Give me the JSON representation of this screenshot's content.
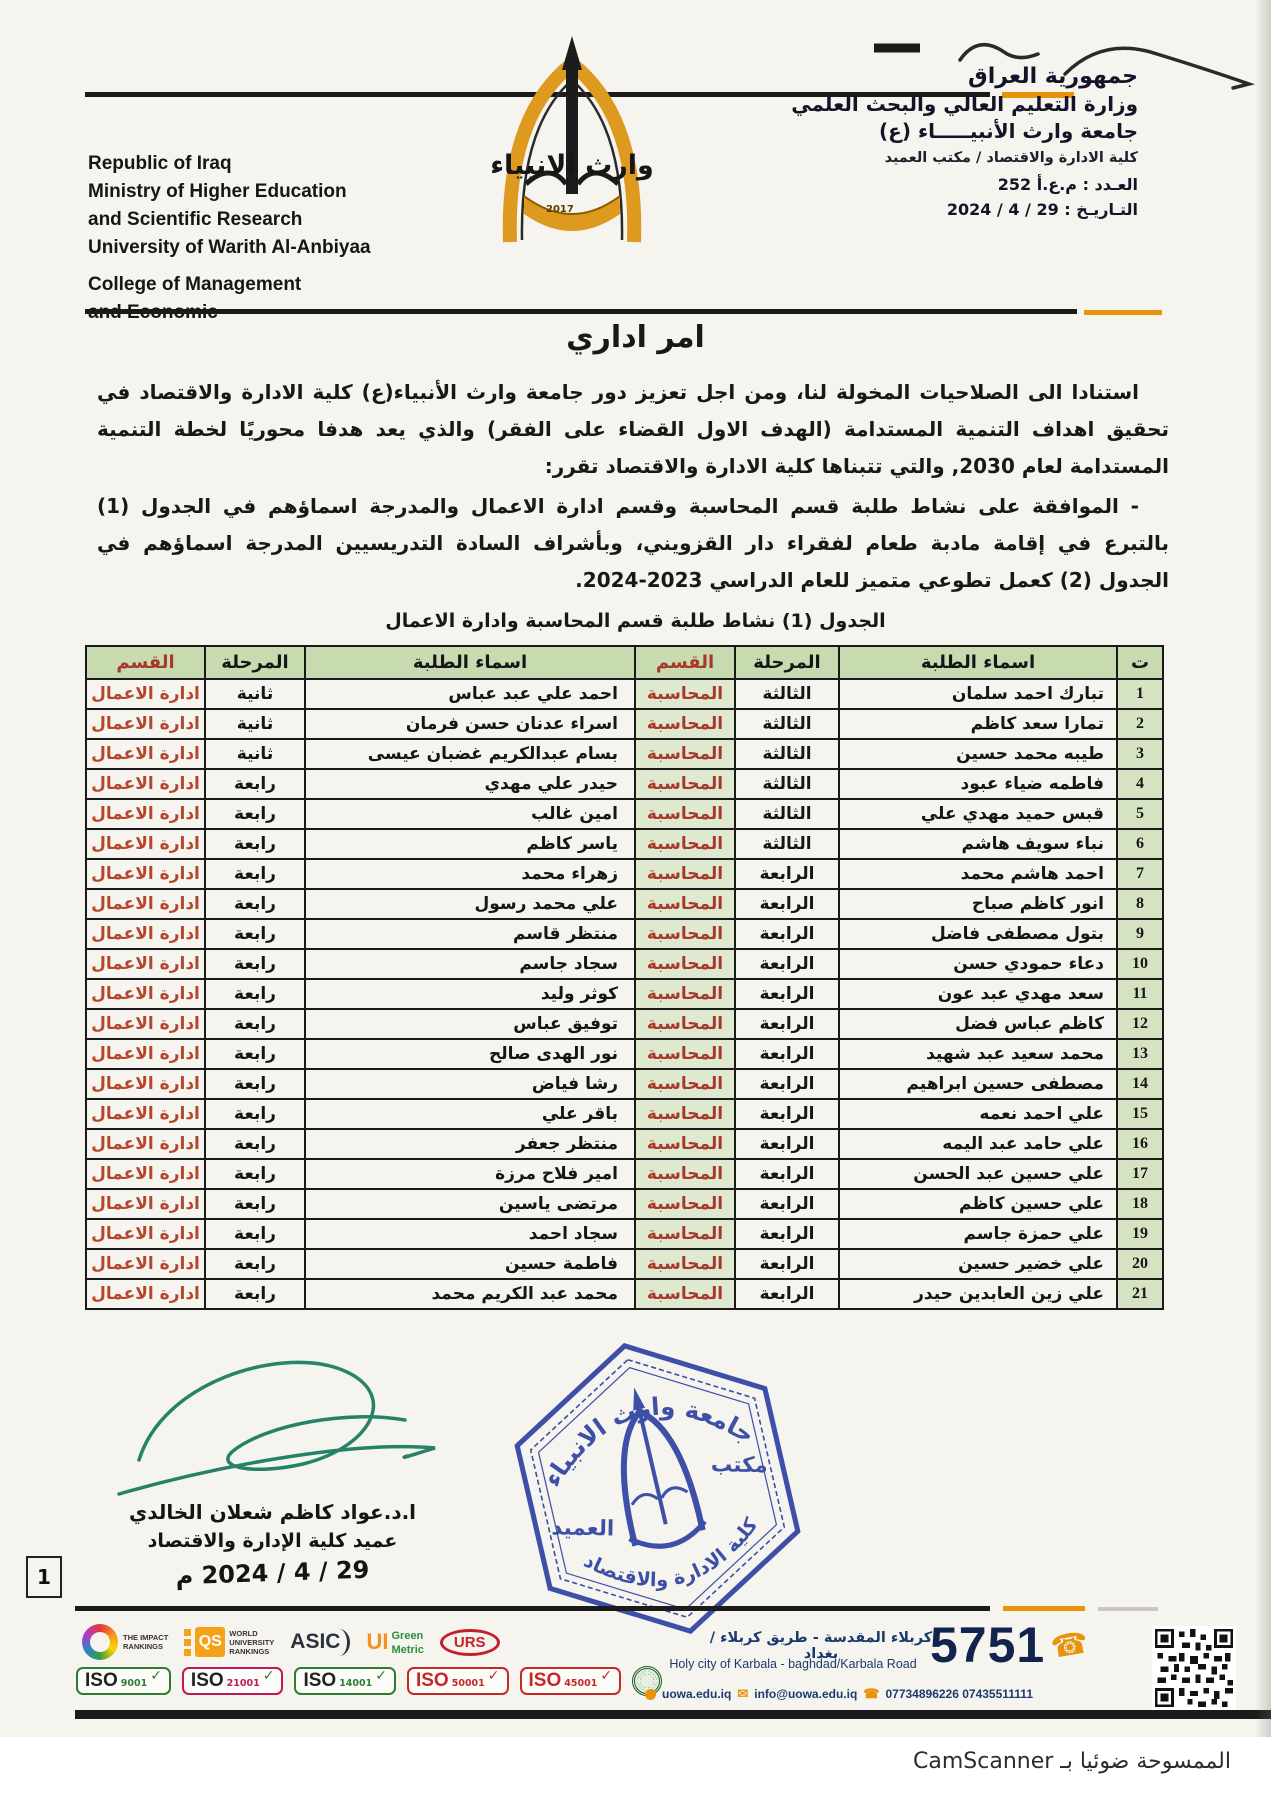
{
  "document": {
    "title": "امر اداري",
    "camscanner_note": "الممسوحة ضوئيا بـ CamScanner",
    "page_number": "1"
  },
  "header": {
    "english": [
      "Republic of Iraq",
      "Ministry of Higher Education",
      "and Scientific Research",
      "University of Warith Al-Anbiyaa"
    ],
    "english_college": [
      "College of Management",
      "and Economic"
    ],
    "arabic": [
      "جمهورية العراق",
      "وزارة التعليم العالي والبحث العلمي",
      "جامعة وارث الأنبيـــــاء (ع)",
      "كلية الادارة والاقتصاد / مكتب العميد"
    ],
    "number_line": "العـدد : م.ع.أ 252",
    "date_line": "التـاريـخ : 29 / 4 / 2024"
  },
  "logo": {
    "calligraphy": "وارث الانبياء",
    "year": "2017"
  },
  "body": {
    "paragraph1": "استنادا الى الصلاحيات المخولة لنا، ومن اجل تعزيز دور جامعة وارث الأنبياء(ع) كلية الادارة والاقتصاد في تحقيق اهداف التنمية المستدامة (الهدف الاول القضاء على الفقر) والذي يعد هدفا محوريًا لخطة التنمية المستدامة لعام 2030, والتي تتبناها كلية الادارة والاقتصاد تقرر:",
    "paragraph2": "- الموافقة على نشاط طلبة قسم المحاسبة وقسم ادارة الاعمال والمدرجة اسماؤهم في الجدول (1) بالتبرع في إقامة مادبة طعام لفقراء دار القزويني، وبأشراف السادة التدريسيين المدرجة اسماؤهم في الجدول (2) كعمل تطوعي متميز للعام الدراسي 2023-2024."
  },
  "table": {
    "caption": "الجدول (1) نشاط طلبة قسم المحاسبة  وادارة الاعمال",
    "headers": [
      "ت",
      "اسماء الطلبة",
      "المرحلة",
      "القسم",
      "اسماء الطلبة",
      "المرحلة",
      "القسم"
    ],
    "rows": [
      {
        "no": "1",
        "acc_name": "تبارك احمد سلمان",
        "acc_stage": "الثالثة",
        "acc_dept": "المحاسبة",
        "bus_name": "احمد علي عبد عباس",
        "bus_stage": "ثانية",
        "bus_dept": "ادارة الاعمال"
      },
      {
        "no": "2",
        "acc_name": "تمارا سعد كاظم",
        "acc_stage": "الثالثة",
        "acc_dept": "المحاسبة",
        "bus_name": "اسراء عدنان حسن فرمان",
        "bus_stage": "ثانية",
        "bus_dept": "ادارة الاعمال"
      },
      {
        "no": "3",
        "acc_name": "طيبه محمد حسين",
        "acc_stage": "الثالثة",
        "acc_dept": "المحاسبة",
        "bus_name": "بسام عبدالكريم غضبان عيسى",
        "bus_stage": "ثانية",
        "bus_dept": "ادارة الاعمال"
      },
      {
        "no": "4",
        "acc_name": "فاطمه ضياء عبود",
        "acc_stage": "الثالثة",
        "acc_dept": "المحاسبة",
        "bus_name": "حيدر علي مهدي",
        "bus_stage": "رابعة",
        "bus_dept": "ادارة الاعمال"
      },
      {
        "no": "5",
        "acc_name": "قبس حميد مهدي علي",
        "acc_stage": "الثالثة",
        "acc_dept": "المحاسبة",
        "bus_name": "امين غالب",
        "bus_stage": "رابعة",
        "bus_dept": "ادارة الاعمال"
      },
      {
        "no": "6",
        "acc_name": "نباء سويف هاشم",
        "acc_stage": "الثالثة",
        "acc_dept": "المحاسبة",
        "bus_name": "ياسر كاظم",
        "bus_stage": "رابعة",
        "bus_dept": "ادارة الاعمال"
      },
      {
        "no": "7",
        "acc_name": "احمد هاشم محمد",
        "acc_stage": "الرابعة",
        "acc_dept": "المحاسبة",
        "bus_name": "زهراء محمد",
        "bus_stage": "رابعة",
        "bus_dept": "ادارة الاعمال"
      },
      {
        "no": "8",
        "acc_name": "انور كاظم صباح",
        "acc_stage": "الرابعة",
        "acc_dept": "المحاسبة",
        "bus_name": "علي محمد رسول",
        "bus_stage": "رابعة",
        "bus_dept": "ادارة الاعمال"
      },
      {
        "no": "9",
        "acc_name": "بتول مصطفى فاضل",
        "acc_stage": "الرابعة",
        "acc_dept": "المحاسبة",
        "bus_name": "منتظر قاسم",
        "bus_stage": "رابعة",
        "bus_dept": "ادارة الاعمال"
      },
      {
        "no": "10",
        "acc_name": "دعاء حمودي حسن",
        "acc_stage": "الرابعة",
        "acc_dept": "المحاسبة",
        "bus_name": "سجاد جاسم",
        "bus_stage": "رابعة",
        "bus_dept": "ادارة الاعمال"
      },
      {
        "no": "11",
        "acc_name": "سعد مهدي عبد عون",
        "acc_stage": "الرابعة",
        "acc_dept": "المحاسبة",
        "bus_name": "كوثر وليد",
        "bus_stage": "رابعة",
        "bus_dept": "ادارة الاعمال"
      },
      {
        "no": "12",
        "acc_name": "كاظم عباس فضل",
        "acc_stage": "الرابعة",
        "acc_dept": "المحاسبة",
        "bus_name": "توفيق عباس",
        "bus_stage": "رابعة",
        "bus_dept": "ادارة الاعمال"
      },
      {
        "no": "13",
        "acc_name": "محمد سعيد عبد شهيد",
        "acc_stage": "الرابعة",
        "acc_dept": "المحاسبة",
        "bus_name": "نور الهدى صالح",
        "bus_stage": "رابعة",
        "bus_dept": "ادارة الاعمال"
      },
      {
        "no": "14",
        "acc_name": "مصطفى حسين ابراهيم",
        "acc_stage": "الرابعة",
        "acc_dept": "المحاسبة",
        "bus_name": "رشا فياض",
        "bus_stage": "رابعة",
        "bus_dept": "ادارة الاعمال"
      },
      {
        "no": "15",
        "acc_name": "علي احمد نعمه",
        "acc_stage": "الرابعة",
        "acc_dept": "المحاسبة",
        "bus_name": "باقر علي",
        "bus_stage": "رابعة",
        "bus_dept": "ادارة الاعمال"
      },
      {
        "no": "16",
        "acc_name": "علي حامد عبد اليمه",
        "acc_stage": "الرابعة",
        "acc_dept": "المحاسبة",
        "bus_name": "منتظر جعفر",
        "bus_stage": "رابعة",
        "bus_dept": "ادارة الاعمال"
      },
      {
        "no": "17",
        "acc_name": "علي حسين عبد الحسن",
        "acc_stage": "الرابعة",
        "acc_dept": "المحاسبة",
        "bus_name": "امير فلاح مرزة",
        "bus_stage": "رابعة",
        "bus_dept": "ادارة الاعمال"
      },
      {
        "no": "18",
        "acc_name": "علي حسين كاظم",
        "acc_stage": "الرابعة",
        "acc_dept": "المحاسبة",
        "bus_name": "مرتضى ياسين",
        "bus_stage": "رابعة",
        "bus_dept": "ادارة الاعمال"
      },
      {
        "no": "19",
        "acc_name": "علي حمزة جاسم",
        "acc_stage": "الرابعة",
        "acc_dept": "المحاسبة",
        "bus_name": "سجاد احمد",
        "bus_stage": "رابعة",
        "bus_dept": "ادارة الاعمال"
      },
      {
        "no": "20",
        "acc_name": "علي خضير حسين",
        "acc_stage": "الرابعة",
        "acc_dept": "المحاسبة",
        "bus_name": "فاطمة حسين",
        "bus_stage": "رابعة",
        "bus_dept": "ادارة الاعمال"
      },
      {
        "no": "21",
        "acc_name": "علي زين العابدين حيدر",
        "acc_stage": "الرابعة",
        "acc_dept": "المحاسبة",
        "bus_name": "محمد عبد الكريم محمد",
        "bus_stage": "رابعة",
        "bus_dept": "ادارة الاعمال"
      }
    ]
  },
  "signature": {
    "name": "ا.د.عواد كاظم شعلان الخالدي",
    "title": "عميد كلية الإدارة والاقتصاد",
    "date": "29 / 4 / 2024 م"
  },
  "stamp": {
    "top": "جامعة وارث الانبياء",
    "right": "مكتب",
    "left": "العميد",
    "bottom": "كلية الادارة والاقتصاد"
  },
  "footer": {
    "impact_line1": "THE IMPACT",
    "impact_line2": "RANKINGS",
    "qs": "QS",
    "qs_caption1": "WORLD",
    "qs_caption2": "UNIVERSITY",
    "qs_caption3": "RANKINGS",
    "asic": "ASIC",
    "ui": "UI",
    "green": "Green",
    "metric": "Metric",
    "urs": "URS",
    "iso": [
      {
        "label": "ISO",
        "num": "9001"
      },
      {
        "label": "ISO",
        "num": "21001"
      },
      {
        "label": "ISO",
        "num": "14001"
      },
      {
        "label": "ISO",
        "num": "50001"
      },
      {
        "label": "ISO",
        "num": "45001"
      }
    ],
    "address_ar": "كربلاء المقدسة - طريق كربلاء / بغداد",
    "address_en": "Holy city of Karbala - baghdad/Karbala Road",
    "hotline": "5751",
    "website": "uowa.edu.iq",
    "email": "info@uowa.edu.iq",
    "phones": "07734896226   07435511111"
  }
}
